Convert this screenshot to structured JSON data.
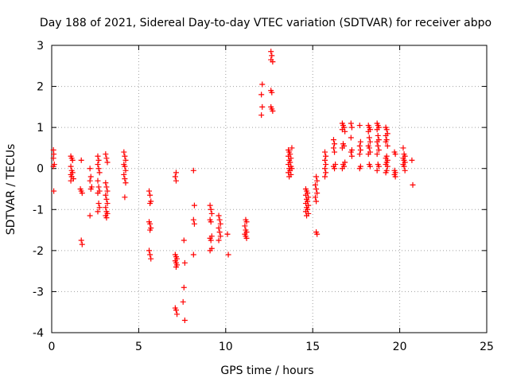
{
  "chart_data": {
    "type": "scatter",
    "title": "Day 188 of 2021, Sidereal Day-to-day VTEC variation (SDTVAR) for receiver abpo",
    "xlabel": "GPS time / hours",
    "ylabel": "SDTVAR / TECUs",
    "xlim": [
      0,
      25
    ],
    "ylim": [
      -4,
      3
    ],
    "xticks": [
      0,
      5,
      10,
      15,
      20,
      25
    ],
    "yticks": [
      -4,
      -3,
      -2,
      -1,
      0,
      1,
      2,
      3
    ],
    "grid": true,
    "marker": "+",
    "color": "#ff0000",
    "series": [
      {
        "name": "SDTVAR",
        "points": [
          [
            0.1,
            0.45
          ],
          [
            0.12,
            0.35
          ],
          [
            0.1,
            0.25
          ],
          [
            0.15,
            0.1
          ],
          [
            0.1,
            0.05
          ],
          [
            0.12,
            -0.55
          ],
          [
            1.1,
            0.3
          ],
          [
            1.15,
            0.25
          ],
          [
            1.2,
            0.2
          ],
          [
            1.1,
            0.05
          ],
          [
            1.15,
            -0.05
          ],
          [
            1.2,
            -0.1
          ],
          [
            1.1,
            -0.15
          ],
          [
            1.15,
            -0.2
          ],
          [
            1.25,
            -0.25
          ],
          [
            1.1,
            -0.3
          ],
          [
            1.7,
            0.2
          ],
          [
            1.65,
            -0.5
          ],
          [
            1.7,
            -0.55
          ],
          [
            1.75,
            -0.6
          ],
          [
            1.7,
            -1.75
          ],
          [
            1.75,
            -1.85
          ],
          [
            2.2,
            0.0
          ],
          [
            2.25,
            -0.2
          ],
          [
            2.2,
            -0.3
          ],
          [
            2.3,
            -0.45
          ],
          [
            2.25,
            -0.5
          ],
          [
            2.2,
            -1.15
          ],
          [
            2.65,
            0.3
          ],
          [
            2.7,
            0.2
          ],
          [
            2.65,
            0.1
          ],
          [
            2.7,
            0.0
          ],
          [
            2.75,
            -0.1
          ],
          [
            2.65,
            -0.3
          ],
          [
            2.7,
            -0.45
          ],
          [
            2.75,
            -0.55
          ],
          [
            2.65,
            -0.6
          ],
          [
            2.7,
            -0.85
          ],
          [
            2.75,
            -0.95
          ],
          [
            2.65,
            -1.05
          ],
          [
            3.1,
            0.35
          ],
          [
            3.15,
            0.25
          ],
          [
            3.2,
            0.15
          ],
          [
            3.1,
            -0.35
          ],
          [
            3.15,
            -0.45
          ],
          [
            3.2,
            -0.55
          ],
          [
            3.1,
            -0.65
          ],
          [
            3.15,
            -0.75
          ],
          [
            3.2,
            -0.85
          ],
          [
            3.1,
            -0.95
          ],
          [
            3.15,
            -1.05
          ],
          [
            3.2,
            -1.1
          ],
          [
            3.1,
            -1.15
          ],
          [
            3.15,
            -1.2
          ],
          [
            4.15,
            0.4
          ],
          [
            4.2,
            0.3
          ],
          [
            4.25,
            0.2
          ],
          [
            4.15,
            0.1
          ],
          [
            4.2,
            0.05
          ],
          [
            4.25,
            -0.05
          ],
          [
            4.15,
            -0.15
          ],
          [
            4.2,
            -0.25
          ],
          [
            4.25,
            -0.35
          ],
          [
            4.2,
            -0.7
          ],
          [
            5.6,
            -0.55
          ],
          [
            5.65,
            -0.65
          ],
          [
            5.7,
            -0.8
          ],
          [
            5.65,
            -0.85
          ],
          [
            5.6,
            -1.3
          ],
          [
            5.65,
            -1.35
          ],
          [
            5.7,
            -1.45
          ],
          [
            5.65,
            -1.5
          ],
          [
            5.6,
            -2.0
          ],
          [
            5.65,
            -2.1
          ],
          [
            5.7,
            -2.2
          ],
          [
            7.15,
            -0.1
          ],
          [
            7.1,
            -0.2
          ],
          [
            7.15,
            -0.3
          ],
          [
            7.1,
            -2.1
          ],
          [
            7.15,
            -2.15
          ],
          [
            7.2,
            -2.2
          ],
          [
            7.1,
            -2.25
          ],
          [
            7.15,
            -2.3
          ],
          [
            7.2,
            -2.35
          ],
          [
            7.15,
            -2.4
          ],
          [
            7.1,
            -3.4
          ],
          [
            7.15,
            -3.45
          ],
          [
            7.2,
            -3.55
          ],
          [
            7.6,
            -1.75
          ],
          [
            7.65,
            -2.3
          ],
          [
            7.6,
            -2.9
          ],
          [
            7.55,
            -3.25
          ],
          [
            7.65,
            -3.7
          ],
          [
            8.15,
            -0.05
          ],
          [
            8.2,
            -0.9
          ],
          [
            8.15,
            -1.25
          ],
          [
            8.2,
            -1.35
          ],
          [
            8.15,
            -2.1
          ],
          [
            9.1,
            -0.9
          ],
          [
            9.15,
            -1.0
          ],
          [
            9.2,
            -1.1
          ],
          [
            9.1,
            -1.25
          ],
          [
            9.15,
            -1.3
          ],
          [
            9.2,
            -1.65
          ],
          [
            9.1,
            -1.7
          ],
          [
            9.15,
            -1.75
          ],
          [
            9.2,
            -1.95
          ],
          [
            9.1,
            -2.0
          ],
          [
            9.6,
            -1.15
          ],
          [
            9.65,
            -1.25
          ],
          [
            9.7,
            -1.35
          ],
          [
            9.6,
            -1.45
          ],
          [
            9.65,
            -1.55
          ],
          [
            9.7,
            -1.65
          ],
          [
            9.6,
            -1.75
          ],
          [
            10.1,
            -1.6
          ],
          [
            10.15,
            -2.1
          ],
          [
            11.15,
            -1.25
          ],
          [
            11.2,
            -1.3
          ],
          [
            11.1,
            -1.4
          ],
          [
            11.15,
            -1.5
          ],
          [
            11.2,
            -1.55
          ],
          [
            11.1,
            -1.6
          ],
          [
            11.15,
            -1.65
          ],
          [
            11.2,
            -1.7
          ],
          [
            12.1,
            2.05
          ],
          [
            12.05,
            1.8
          ],
          [
            12.1,
            1.5
          ],
          [
            12.05,
            1.3
          ],
          [
            12.6,
            2.85
          ],
          [
            12.65,
            2.75
          ],
          [
            12.6,
            2.65
          ],
          [
            12.7,
            2.6
          ],
          [
            12.6,
            1.9
          ],
          [
            12.65,
            1.85
          ],
          [
            12.6,
            1.5
          ],
          [
            12.65,
            1.45
          ],
          [
            12.7,
            1.4
          ],
          [
            13.6,
            0.45
          ],
          [
            13.65,
            0.4
          ],
          [
            13.7,
            0.35
          ],
          [
            13.6,
            0.3
          ],
          [
            13.75,
            0.25
          ],
          [
            13.65,
            0.2
          ],
          [
            13.7,
            0.15
          ],
          [
            13.6,
            0.1
          ],
          [
            13.75,
            0.05
          ],
          [
            13.65,
            0.0
          ],
          [
            13.7,
            -0.05
          ],
          [
            13.6,
            -0.1
          ],
          [
            13.75,
            -0.15
          ],
          [
            13.65,
            -0.2
          ],
          [
            13.8,
            0.5
          ],
          [
            13.8,
            0.0
          ],
          [
            14.6,
            -0.5
          ],
          [
            14.65,
            -0.55
          ],
          [
            14.7,
            -0.6
          ],
          [
            14.6,
            -0.65
          ],
          [
            14.75,
            -0.7
          ],
          [
            14.65,
            -0.75
          ],
          [
            14.7,
            -0.8
          ],
          [
            14.6,
            -0.85
          ],
          [
            14.75,
            -0.9
          ],
          [
            14.65,
            -0.95
          ],
          [
            14.7,
            -1.0
          ],
          [
            14.6,
            -1.05
          ],
          [
            14.75,
            -1.1
          ],
          [
            14.65,
            -1.15
          ],
          [
            15.2,
            -0.2
          ],
          [
            15.25,
            -0.3
          ],
          [
            15.15,
            -0.4
          ],
          [
            15.2,
            -0.5
          ],
          [
            15.25,
            -0.6
          ],
          [
            15.15,
            -0.7
          ],
          [
            15.2,
            -0.8
          ],
          [
            15.2,
            -1.55
          ],
          [
            15.25,
            -1.6
          ],
          [
            15.7,
            0.4
          ],
          [
            15.75,
            0.3
          ],
          [
            15.7,
            0.2
          ],
          [
            15.75,
            0.1
          ],
          [
            15.7,
            0.0
          ],
          [
            15.75,
            -0.1
          ],
          [
            15.7,
            -0.2
          ],
          [
            16.2,
            0.7
          ],
          [
            16.25,
            0.6
          ],
          [
            16.2,
            0.5
          ],
          [
            16.25,
            0.4
          ],
          [
            16.3,
            0.1
          ],
          [
            16.2,
            0.05
          ],
          [
            16.25,
            0.0
          ],
          [
            16.7,
            1.1
          ],
          [
            16.75,
            1.05
          ],
          [
            16.8,
            1.0
          ],
          [
            16.7,
            0.95
          ],
          [
            16.85,
            0.9
          ],
          [
            16.75,
            0.6
          ],
          [
            16.8,
            0.55
          ],
          [
            16.7,
            0.5
          ],
          [
            16.85,
            0.15
          ],
          [
            16.75,
            0.1
          ],
          [
            16.8,
            0.05
          ],
          [
            16.7,
            0.0
          ],
          [
            17.2,
            1.1
          ],
          [
            17.25,
            1.0
          ],
          [
            17.2,
            0.75
          ],
          [
            17.25,
            0.45
          ],
          [
            17.2,
            0.4
          ],
          [
            17.25,
            0.3
          ],
          [
            17.7,
            1.05
          ],
          [
            17.75,
            0.65
          ],
          [
            17.7,
            0.55
          ],
          [
            17.75,
            0.45
          ],
          [
            17.7,
            0.35
          ],
          [
            17.75,
            0.05
          ],
          [
            17.7,
            0.0
          ],
          [
            18.2,
            1.05
          ],
          [
            18.25,
            1.0
          ],
          [
            18.3,
            0.95
          ],
          [
            18.2,
            0.9
          ],
          [
            18.25,
            0.75
          ],
          [
            18.3,
            0.65
          ],
          [
            18.2,
            0.55
          ],
          [
            18.25,
            0.5
          ],
          [
            18.3,
            0.4
          ],
          [
            18.2,
            0.35
          ],
          [
            18.25,
            0.1
          ],
          [
            18.3,
            0.05
          ],
          [
            18.7,
            1.1
          ],
          [
            18.75,
            1.05
          ],
          [
            18.8,
            1.0
          ],
          [
            18.7,
            0.95
          ],
          [
            18.75,
            0.8
          ],
          [
            18.8,
            0.7
          ],
          [
            18.7,
            0.65
          ],
          [
            18.75,
            0.55
          ],
          [
            18.8,
            0.45
          ],
          [
            18.7,
            0.35
          ],
          [
            18.75,
            0.1
          ],
          [
            18.8,
            0.05
          ],
          [
            18.7,
            -0.05
          ],
          [
            19.2,
            1.0
          ],
          [
            19.25,
            0.95
          ],
          [
            19.3,
            0.85
          ],
          [
            19.2,
            0.8
          ],
          [
            19.25,
            0.7
          ],
          [
            19.2,
            0.65
          ],
          [
            19.3,
            0.55
          ],
          [
            19.25,
            0.3
          ],
          [
            19.2,
            0.25
          ],
          [
            19.3,
            0.2
          ],
          [
            19.25,
            0.15
          ],
          [
            19.2,
            0.1
          ],
          [
            19.3,
            0.05
          ],
          [
            19.25,
            -0.05
          ],
          [
            19.2,
            -0.1
          ],
          [
            19.7,
            0.4
          ],
          [
            19.75,
            0.35
          ],
          [
            19.7,
            -0.05
          ],
          [
            19.75,
            -0.1
          ],
          [
            19.7,
            -0.15
          ],
          [
            19.75,
            -0.2
          ],
          [
            20.2,
            0.5
          ],
          [
            20.25,
            0.35
          ],
          [
            20.3,
            0.3
          ],
          [
            20.2,
            0.25
          ],
          [
            20.25,
            0.2
          ],
          [
            20.3,
            0.15
          ],
          [
            20.2,
            0.1
          ],
          [
            20.25,
            0.05
          ],
          [
            20.3,
            -0.05
          ],
          [
            20.7,
            0.2
          ],
          [
            20.75,
            -0.4
          ]
        ]
      }
    ]
  }
}
